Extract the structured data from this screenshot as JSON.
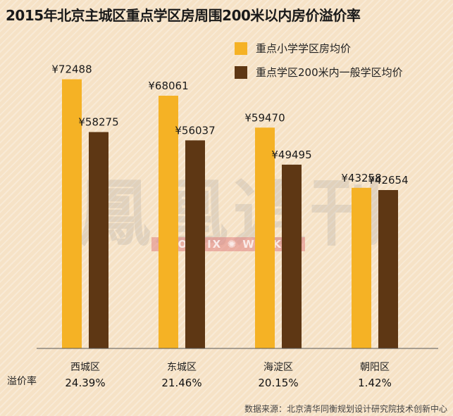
{
  "chart_data": {
    "type": "bar",
    "title": "2015年北京主城区重点学区房周围200米以内房价溢价率",
    "categories": [
      "西城区",
      "东城区",
      "海淀区",
      "朝阳区"
    ],
    "series": [
      {
        "name": "重点小学学区房均价",
        "color": "#f5b225",
        "values": [
          72488,
          68061,
          59470,
          43258
        ],
        "labels": [
          "¥72488",
          "¥68061",
          "¥59470",
          "¥43258"
        ]
      },
      {
        "name": "重点学区200米内一般学区均价",
        "color": "#5e3714",
        "values": [
          58275,
          56037,
          49495,
          42654
        ],
        "labels": [
          "¥58275",
          "¥56037",
          "¥49495",
          "¥42654"
        ]
      }
    ],
    "premium_label": "溢价率",
    "premium_rates": [
      "24.39%",
      "21.46%",
      "20.15%",
      "1.42%"
    ],
    "ylim": [
      0,
      80000
    ],
    "grid": false,
    "legend": "top-right"
  },
  "watermark": {
    "chinese": "鳳凰週刊",
    "english": "PHOENIX ✺ WEEKLY"
  },
  "source": "数据来源：北京清华同衡规划设计研究院技术创新中心"
}
